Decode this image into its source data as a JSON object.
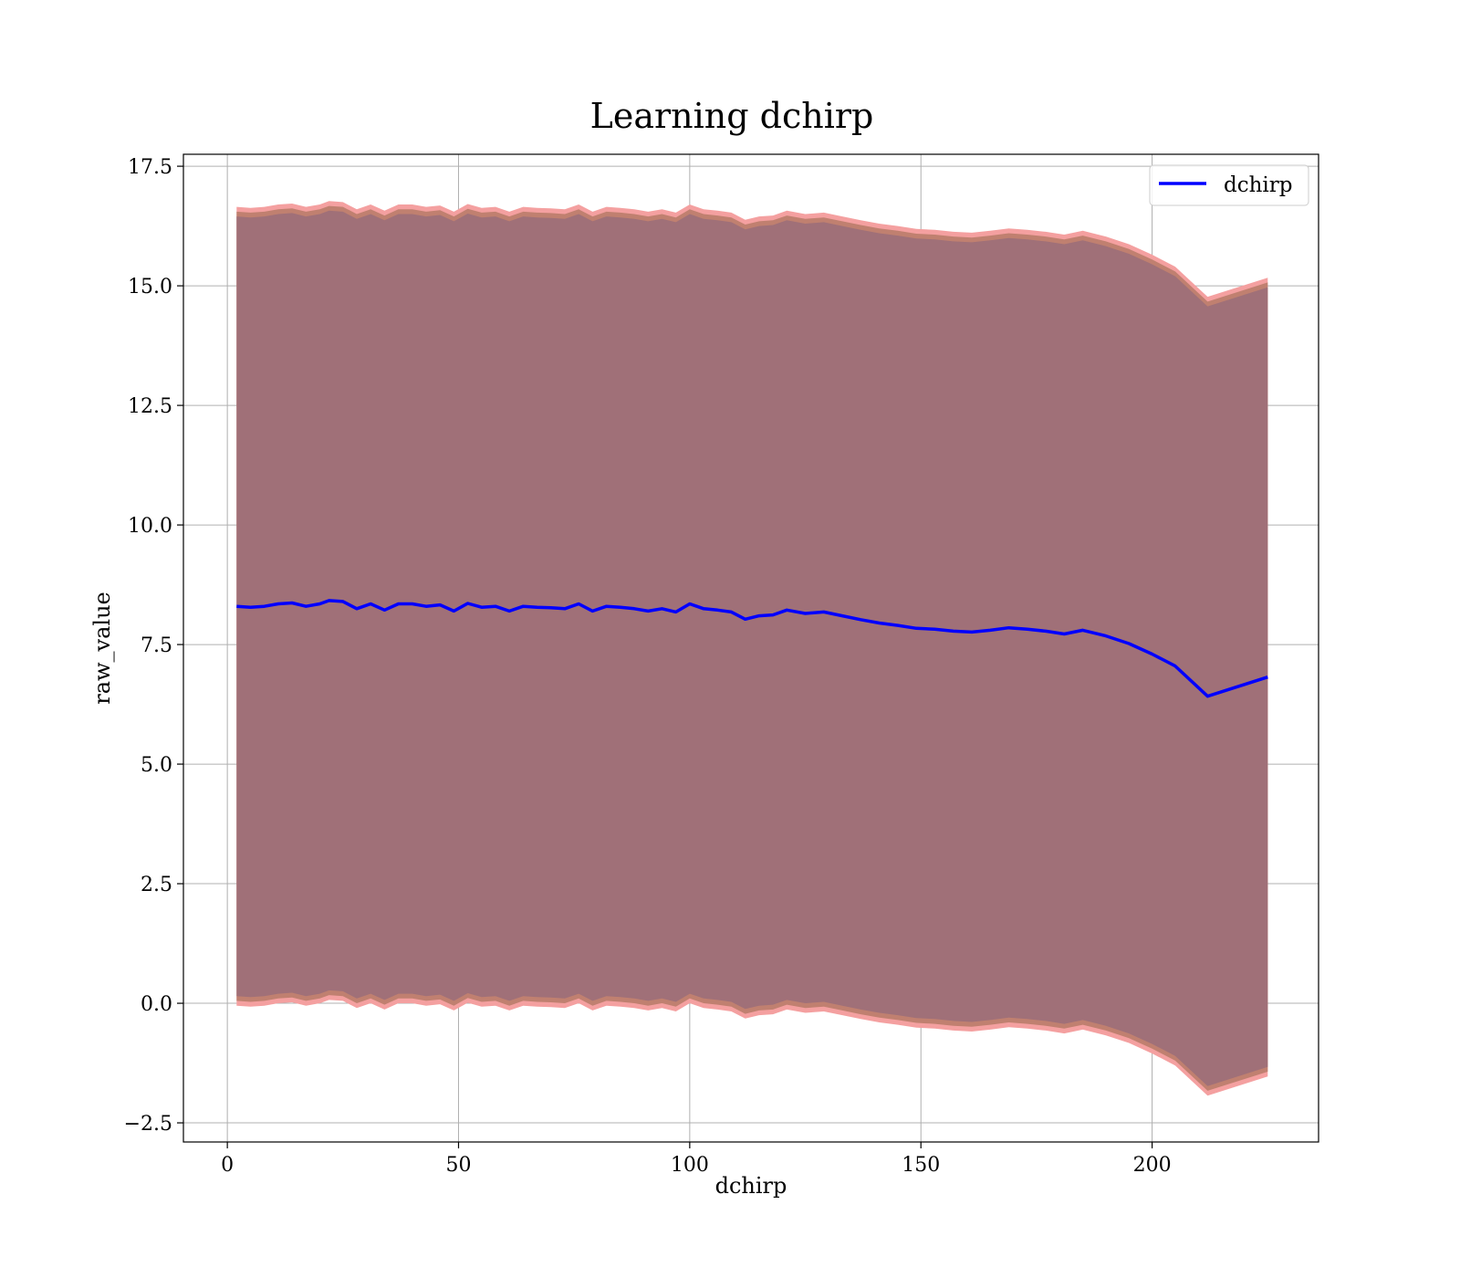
{
  "chart_data": {
    "type": "line",
    "title": "Learning dchirp",
    "xlabel": "dchirp",
    "ylabel": "raw_value",
    "xlim": [
      -9.5,
      236
    ],
    "ylim": [
      -2.9,
      17.75
    ],
    "xticks": [
      0,
      50,
      100,
      150,
      200
    ],
    "xtick_labels": [
      "0",
      "50",
      "100",
      "150",
      "200"
    ],
    "yticks": [
      -2.5,
      0.0,
      2.5,
      5.0,
      7.5,
      10.0,
      12.5,
      15.0,
      17.5
    ],
    "ytick_labels": [
      "−2.5",
      "0.0",
      "2.5",
      "5.0",
      "7.5",
      "10.0",
      "12.5",
      "15.0",
      "17.5"
    ],
    "grid": true,
    "legend_position": "top-right",
    "colors": {
      "line": "#0000ff",
      "band_outer": "#f4a0a0",
      "band_middle": "#c08070",
      "band_inner": "#a07078"
    },
    "series": [
      {
        "name": "dchirp",
        "x": [
          2,
          5,
          8,
          11,
          14,
          17,
          20,
          22,
          25,
          28,
          31,
          34,
          37,
          40,
          43,
          46,
          49,
          52,
          55,
          58,
          61,
          64,
          67,
          70,
          73,
          76,
          79,
          82,
          85,
          88,
          91,
          94,
          97,
          100,
          103,
          106,
          109,
          112,
          115,
          118,
          121,
          125,
          129,
          133,
          137,
          141,
          145,
          149,
          153,
          157,
          161,
          165,
          169,
          173,
          177,
          181,
          185,
          190,
          195,
          200,
          205,
          212,
          225
        ],
        "y": [
          8.3,
          8.28,
          8.3,
          8.35,
          8.37,
          8.3,
          8.35,
          8.42,
          8.4,
          8.25,
          8.35,
          8.22,
          8.35,
          8.35,
          8.3,
          8.33,
          8.2,
          8.36,
          8.28,
          8.3,
          8.2,
          8.3,
          8.28,
          8.27,
          8.25,
          8.35,
          8.2,
          8.3,
          8.28,
          8.25,
          8.2,
          8.25,
          8.18,
          8.35,
          8.25,
          8.22,
          8.18,
          8.03,
          8.1,
          8.12,
          8.22,
          8.15,
          8.18,
          8.1,
          8.02,
          7.95,
          7.9,
          7.84,
          7.82,
          7.78,
          7.76,
          7.8,
          7.85,
          7.82,
          7.78,
          7.72,
          7.8,
          7.68,
          7.52,
          7.3,
          7.05,
          6.42,
          6.82
        ]
      }
    ],
    "band_half_widths": {
      "outer": 8.35,
      "middle": 8.25,
      "inner": 8.15
    }
  }
}
